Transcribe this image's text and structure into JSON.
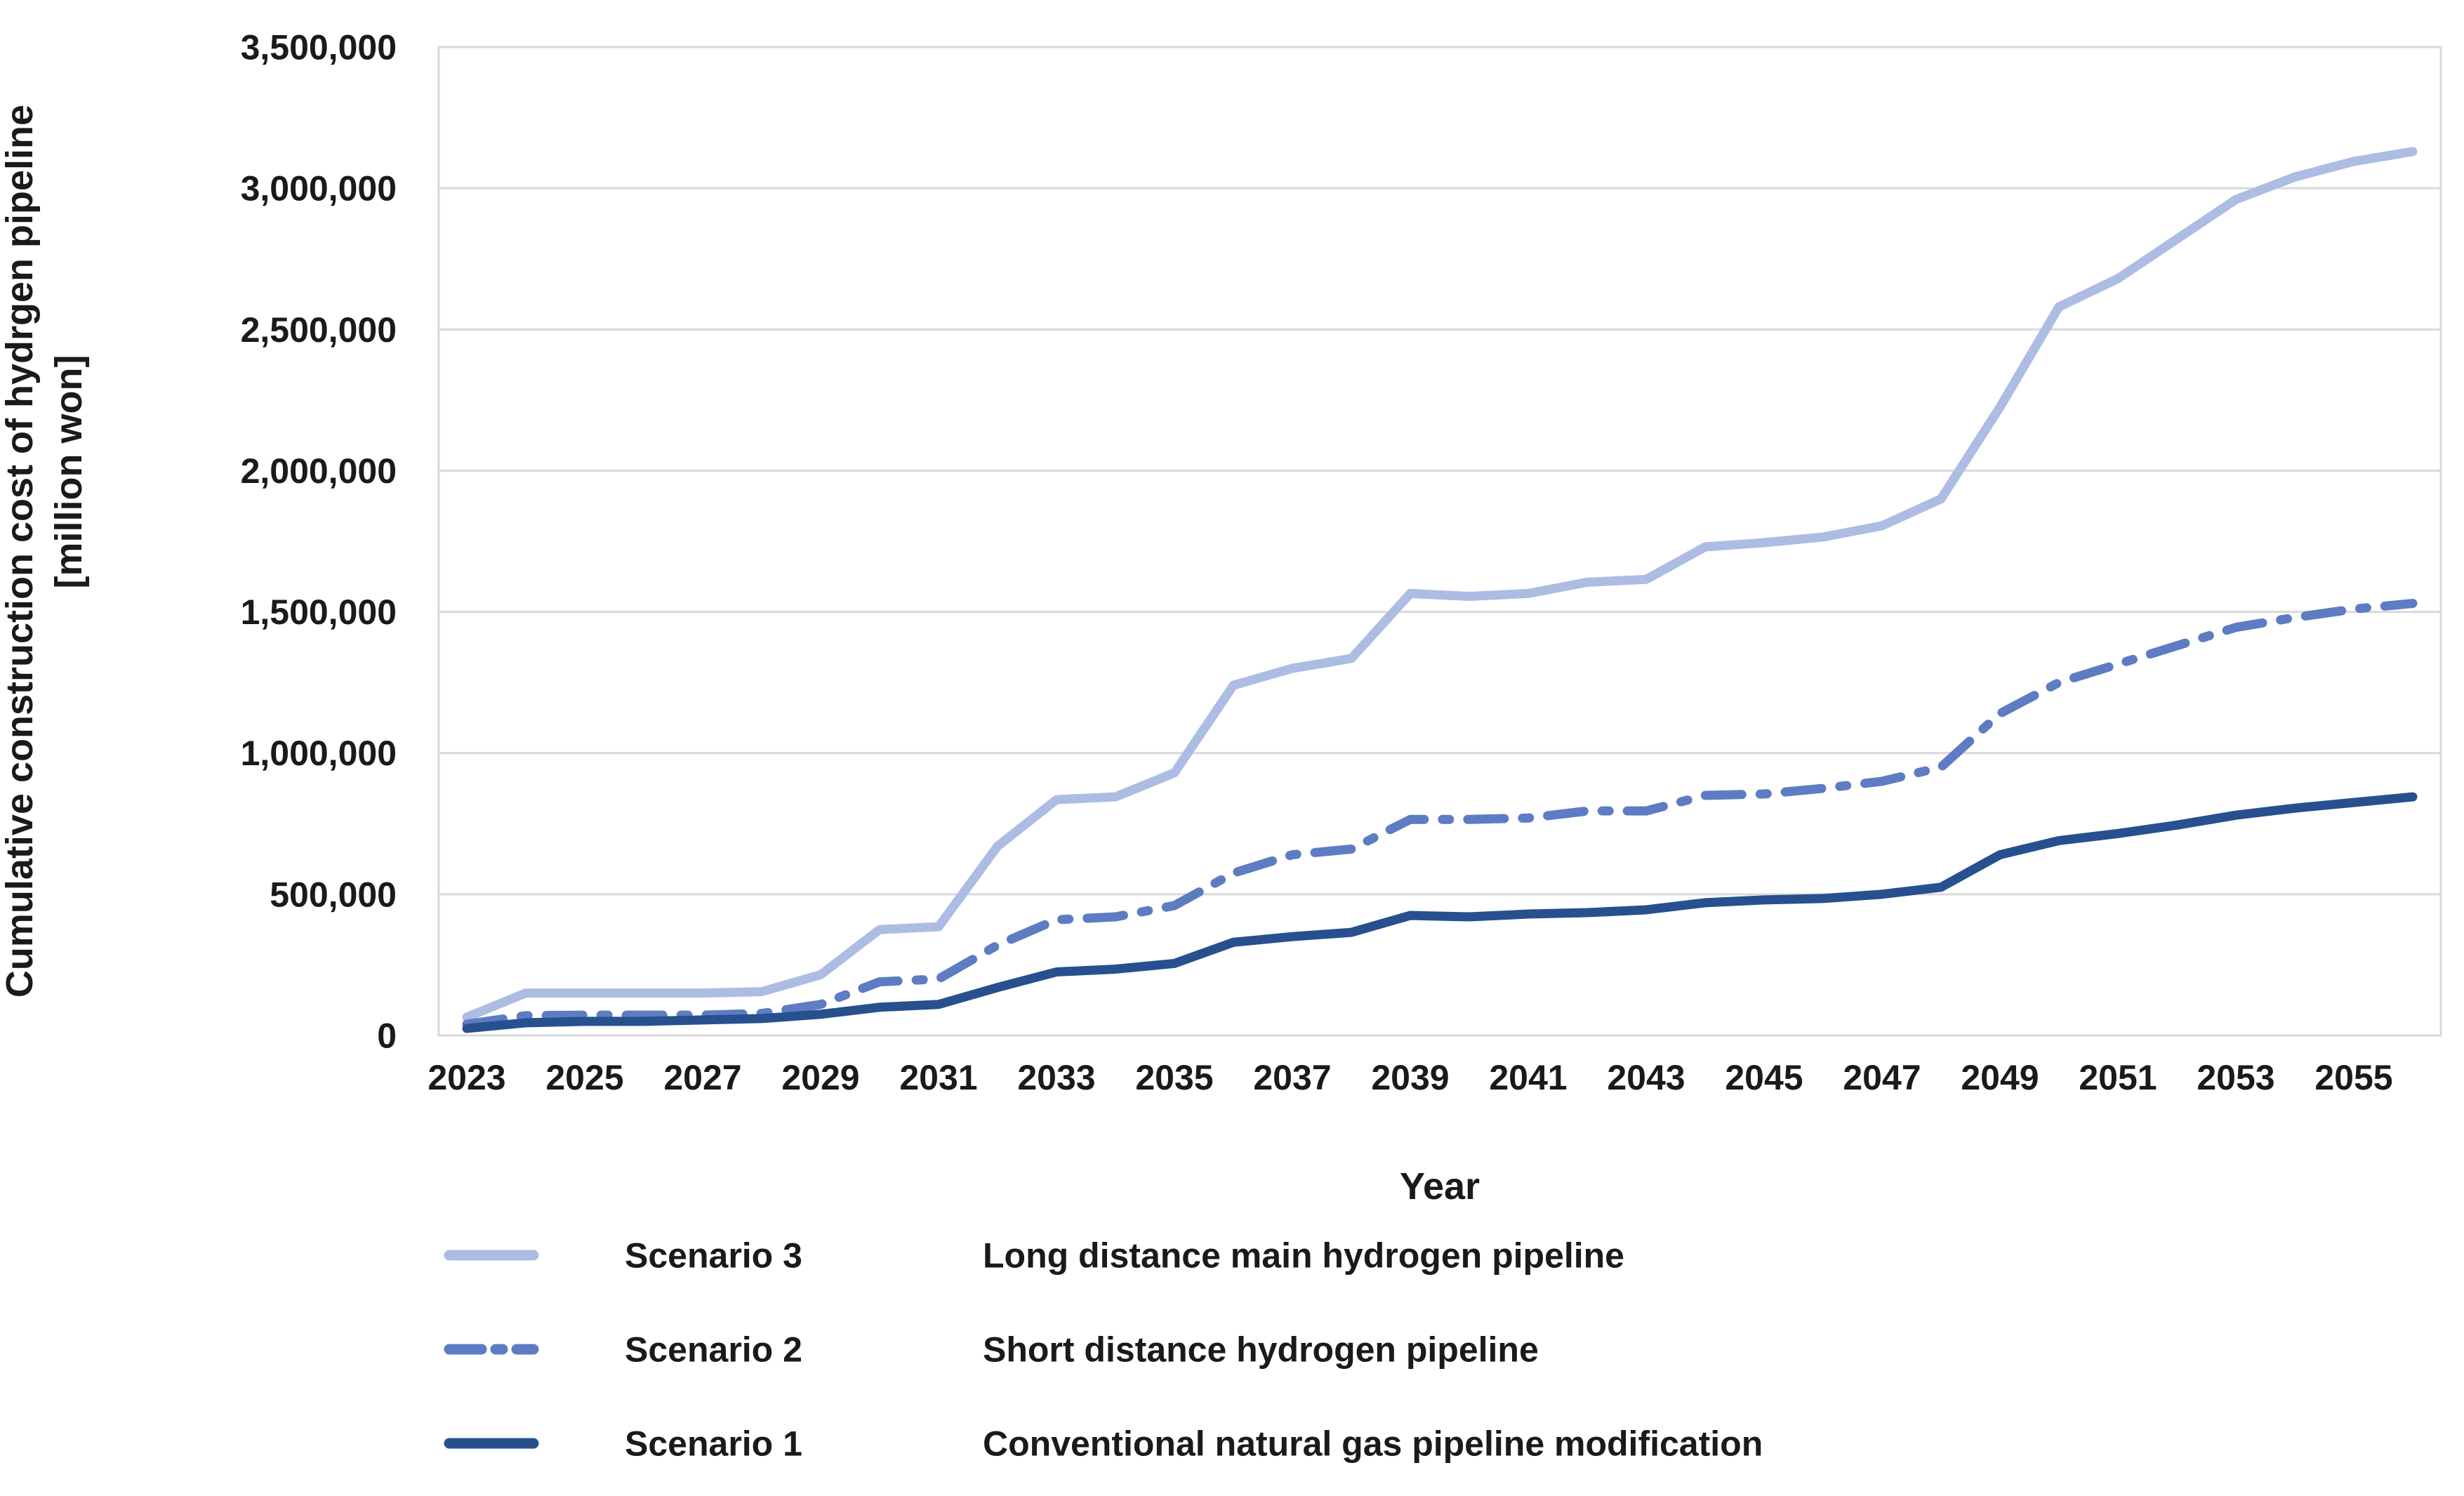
{
  "chart_data": {
    "type": "line",
    "title": "",
    "xlabel": "Year",
    "ylabel": "Cumulative construction cost of hydrgen pipeline",
    "ylabel_unit": "[million won]",
    "x": [
      2023,
      2024,
      2025,
      2026,
      2027,
      2028,
      2029,
      2030,
      2031,
      2032,
      2033,
      2034,
      2035,
      2036,
      2037,
      2038,
      2039,
      2040,
      2041,
      2042,
      2043,
      2044,
      2045,
      2046,
      2047,
      2048,
      2049,
      2050,
      2051,
      2052,
      2053,
      2054,
      2055,
      2056
    ],
    "x_tick_years": [
      2023,
      2025,
      2027,
      2029,
      2031,
      2033,
      2035,
      2037,
      2039,
      2041,
      2043,
      2045,
      2047,
      2049,
      2051,
      2053,
      2055
    ],
    "y_tick_values": [
      0,
      500000,
      1000000,
      1500000,
      2000000,
      2500000,
      3000000,
      3500000
    ],
    "y_tick_labels": [
      "0",
      "500,000",
      "1,000,000",
      "1,500,000",
      "2,000,000",
      "2,500,000",
      "3,000,000",
      "3,500,000"
    ],
    "ylim": [
      0,
      3500000
    ],
    "grid": true,
    "legend_position": "bottom-left",
    "grid_color": "#d9d9d9",
    "series": [
      {
        "name": "Scenario 3",
        "description": "Long distance main hydrogen pipeline",
        "color": "#adbce3",
        "style": "solid",
        "values": [
          65000,
          150000,
          150000,
          150000,
          150000,
          155000,
          215000,
          375000,
          385000,
          670000,
          835000,
          845000,
          930000,
          1240000,
          1300000,
          1335000,
          1565000,
          1555000,
          1565000,
          1605000,
          1615000,
          1730000,
          1745000,
          1765000,
          1805000,
          1900000,
          2225000,
          2580000,
          2680000,
          2820000,
          2960000,
          3040000,
          3095000,
          3130000
        ]
      },
      {
        "name": "Scenario 2",
        "description": "Short distance hydrogen pipeline",
        "color": "#5d7cc3",
        "style": "dash-dot",
        "values": [
          40000,
          70000,
          72000,
          72000,
          72000,
          78000,
          110000,
          190000,
          200000,
          320000,
          410000,
          420000,
          460000,
          575000,
          640000,
          660000,
          765000,
          765000,
          770000,
          795000,
          795000,
          850000,
          855000,
          875000,
          900000,
          950000,
          1140000,
          1250000,
          1315000,
          1380000,
          1445000,
          1480000,
          1510000,
          1530000
        ]
      },
      {
        "name": "Scenario 1",
        "description": "Conventional natural gas pipeline modification",
        "color": "#27508f",
        "style": "solid",
        "values": [
          25000,
          45000,
          50000,
          50000,
          55000,
          60000,
          75000,
          100000,
          110000,
          170000,
          225000,
          235000,
          255000,
          330000,
          350000,
          365000,
          425000,
          420000,
          430000,
          435000,
          445000,
          470000,
          480000,
          485000,
          500000,
          525000,
          640000,
          690000,
          715000,
          745000,
          780000,
          805000,
          825000,
          845000
        ]
      }
    ]
  }
}
